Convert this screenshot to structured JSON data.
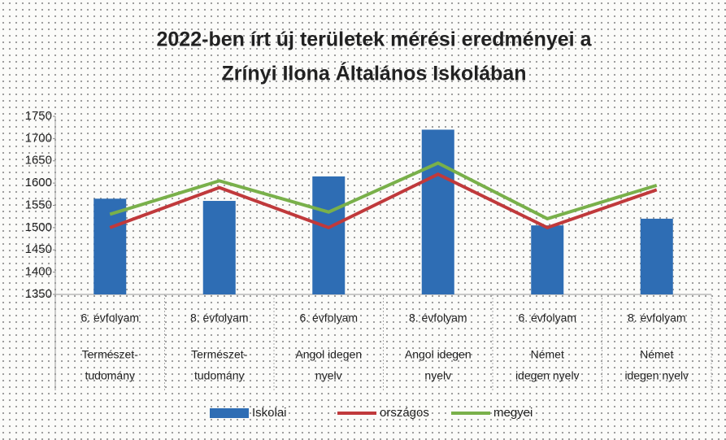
{
  "chart_data": {
    "type": "bar",
    "title": [
      "2022-ben írt új területek mérési eredményei a",
      "Zrínyi Ilona Általános Iskolában"
    ],
    "categories": [
      [
        "6. évfolyam",
        "Természet-",
        "tudomány"
      ],
      [
        "8. évfolyam",
        "Természet-",
        "tudomány"
      ],
      [
        "6. évfolyam",
        "Angol idegen",
        "nyelv"
      ],
      [
        "8. évfolyam",
        "Angol idegen",
        "nyelv"
      ],
      [
        "6. évfolyam",
        "Német",
        "idegen nyelv"
      ],
      [
        "8. évfolyam",
        "Német",
        "idegen nyelv"
      ]
    ],
    "series": [
      {
        "name": "Iskolai",
        "type": "bar",
        "color": "#2e6db4",
        "values": [
          1565,
          1560,
          1615,
          1720,
          1505,
          1520
        ]
      },
      {
        "name": "országos",
        "type": "line",
        "color": "#c0393b",
        "values": [
          1500,
          1590,
          1500,
          1620,
          1500,
          1585
        ]
      },
      {
        "name": "megyei",
        "type": "line",
        "color": "#79b04a",
        "values": [
          1530,
          1605,
          1535,
          1645,
          1520,
          1595
        ]
      }
    ],
    "ylim": [
      1350,
      1750
    ],
    "yticks": [
      1350,
      1400,
      1450,
      1500,
      1550,
      1600,
      1650,
      1700,
      1750
    ],
    "legend": "bottom"
  }
}
